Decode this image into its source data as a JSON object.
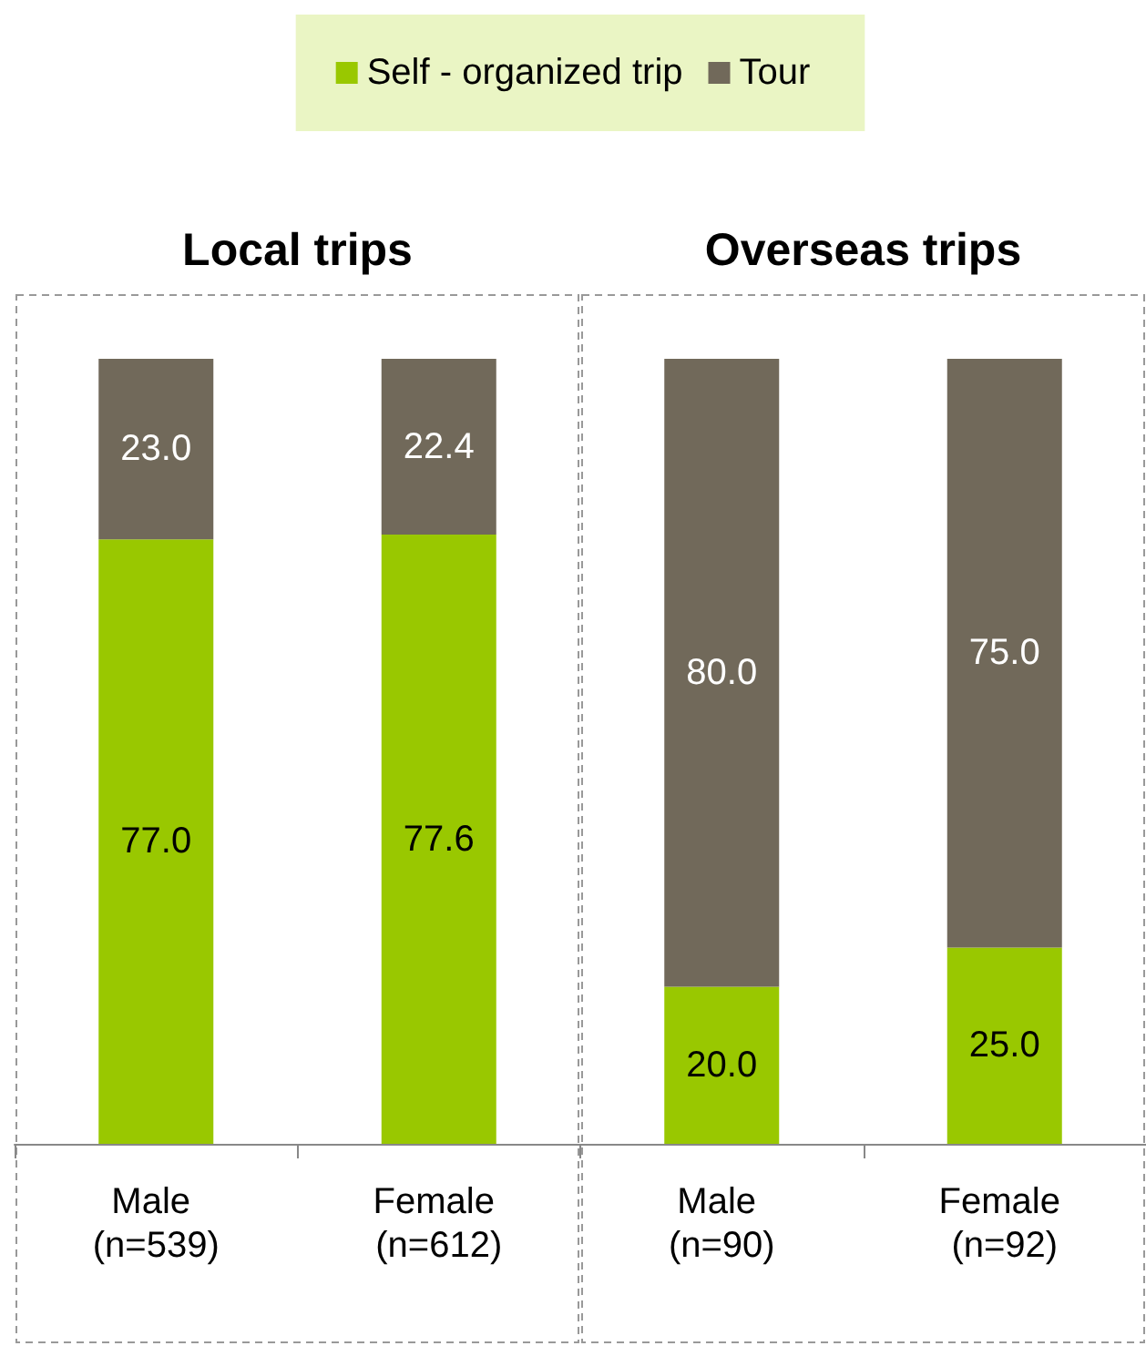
{
  "chart_data": {
    "type": "bar",
    "stacked": true,
    "legend": "top",
    "tick_labels": "x",
    "ylim": [
      0,
      100
    ],
    "categories": [
      "Male (n=539)",
      "Female (n=612)",
      "Male (n=90)",
      "Female (n=92)"
    ],
    "annotations": [
      "Local trips",
      "Overseas trips"
    ],
    "series": [
      {
        "name": "Self - organized trip",
        "color": "#99c800",
        "values": [
          77.0,
          77.6,
          20.0,
          25.0
        ],
        "value_labels": [
          "77.0",
          "77.6",
          "20.0",
          "25.0"
        ]
      },
      {
        "name": "Tour",
        "color": "#71695a",
        "values": [
          23.0,
          22.4,
          80.0,
          75.0
        ],
        "value_labels": [
          "23.0",
          "22.4",
          "80.0",
          "75.0"
        ]
      }
    ]
  }
}
